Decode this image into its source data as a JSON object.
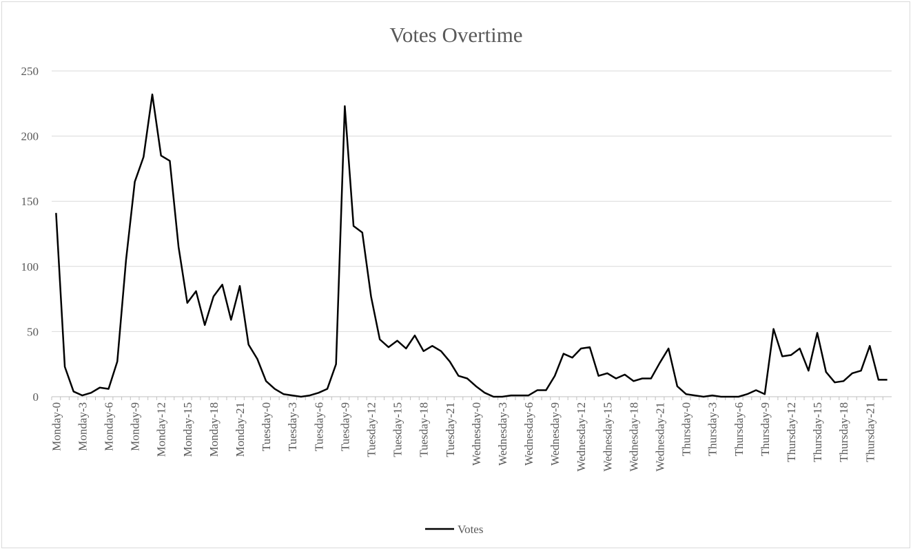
{
  "chart_data": {
    "type": "line",
    "title": "Votes Overtime",
    "xlabel": "",
    "ylabel": "",
    "ylim": [
      0,
      250
    ],
    "yticks": [
      0,
      50,
      100,
      150,
      200,
      250
    ],
    "grid": "horizontal",
    "legend_position": "bottom",
    "line_color": "#000000",
    "categories": [
      "Monday-0",
      "Monday-1",
      "Monday-2",
      "Monday-3",
      "Monday-4",
      "Monday-5",
      "Monday-6",
      "Monday-7",
      "Monday-8",
      "Monday-9",
      "Monday-10",
      "Monday-11",
      "Monday-12",
      "Monday-13",
      "Monday-14",
      "Monday-15",
      "Monday-16",
      "Monday-17",
      "Monday-18",
      "Monday-19",
      "Monday-20",
      "Monday-21",
      "Monday-22",
      "Monday-23",
      "Tuesday-0",
      "Tuesday-1",
      "Tuesday-2",
      "Tuesday-3",
      "Tuesday-4",
      "Tuesday-5",
      "Tuesday-6",
      "Tuesday-7",
      "Tuesday-8",
      "Tuesday-9",
      "Tuesday-10",
      "Tuesday-11",
      "Tuesday-12",
      "Tuesday-13",
      "Tuesday-14",
      "Tuesday-15",
      "Tuesday-16",
      "Tuesday-17",
      "Tuesday-18",
      "Tuesday-19",
      "Tuesday-20",
      "Tuesday-21",
      "Tuesday-22",
      "Tuesday-23",
      "Wednesday-0",
      "Wednesday-1",
      "Wednesday-2",
      "Wednesday-3",
      "Wednesday-4",
      "Wednesday-5",
      "Wednesday-6",
      "Wednesday-7",
      "Wednesday-8",
      "Wednesday-9",
      "Wednesday-10",
      "Wednesday-11",
      "Wednesday-12",
      "Wednesday-13",
      "Wednesday-14",
      "Wednesday-15",
      "Wednesday-16",
      "Wednesday-17",
      "Wednesday-18",
      "Wednesday-19",
      "Wednesday-20",
      "Wednesday-21",
      "Wednesday-22",
      "Wednesday-23",
      "Thursday-0",
      "Thursday-1",
      "Thursday-2",
      "Thursday-3",
      "Thursday-4",
      "Thursday-5",
      "Thursday-6",
      "Thursday-7",
      "Thursday-8",
      "Thursday-9",
      "Thursday-10",
      "Thursday-11",
      "Thursday-12",
      "Thursday-13",
      "Thursday-14",
      "Thursday-15",
      "Thursday-16",
      "Thursday-17",
      "Thursday-18",
      "Thursday-19",
      "Thursday-20",
      "Thursday-21",
      "Thursday-22",
      "Thursday-23"
    ],
    "series": [
      {
        "name": "Votes",
        "values": [
          141,
          23,
          4,
          1,
          3,
          7,
          6,
          27,
          105,
          165,
          184,
          232,
          185,
          181,
          115,
          72,
          81,
          55,
          77,
          86,
          59,
          85,
          40,
          29,
          12,
          6,
          2,
          1,
          0,
          1,
          3,
          6,
          25,
          223,
          131,
          126,
          77,
          44,
          38,
          43,
          37,
          47,
          35,
          39,
          35,
          27,
          16,
          14,
          8,
          3,
          0,
          0,
          1,
          1,
          1,
          5,
          5,
          16,
          33,
          30,
          37,
          38,
          16,
          18,
          14,
          17,
          12,
          14,
          14,
          26,
          37,
          8,
          2,
          1,
          0,
          1,
          0,
          0,
          0,
          2,
          5,
          2,
          52,
          31,
          32,
          37,
          20,
          49,
          19,
          11,
          12,
          18,
          20,
          39,
          13,
          13
        ]
      }
    ]
  }
}
